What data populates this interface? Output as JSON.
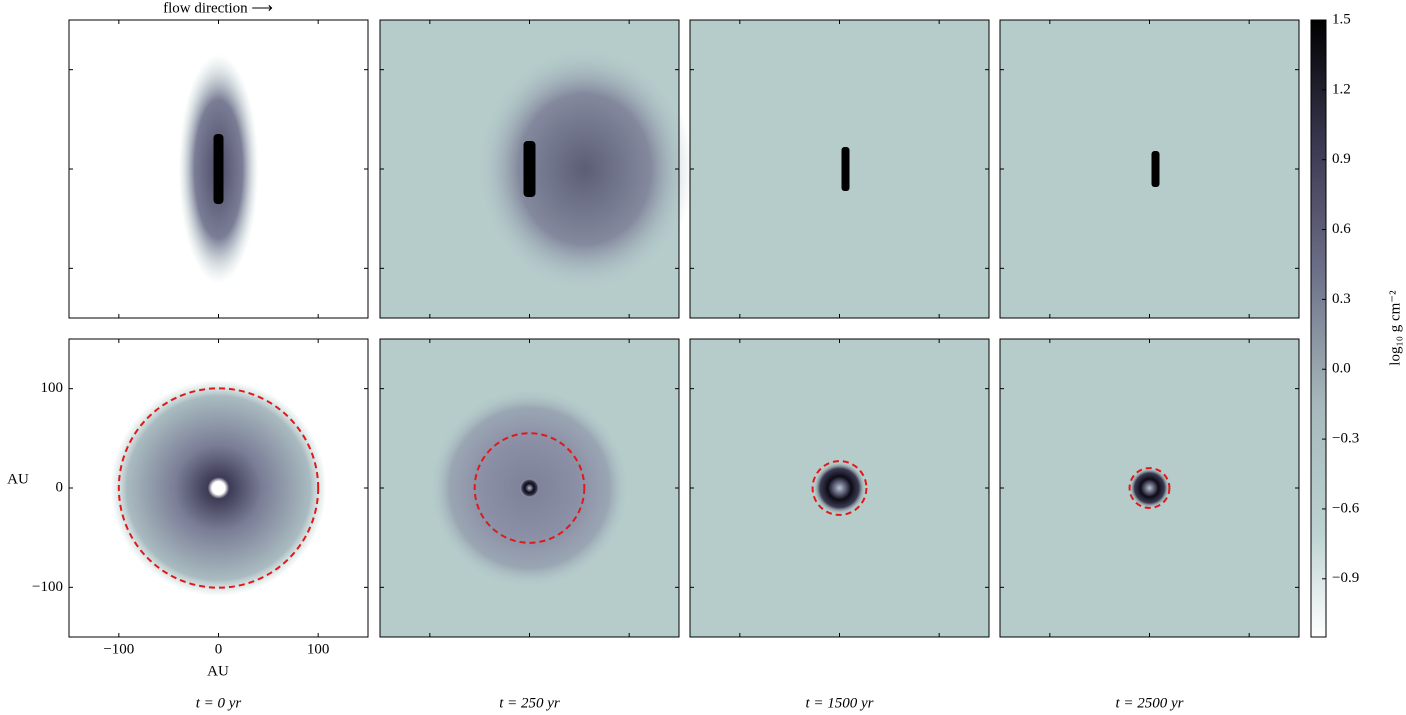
{
  "chart_data": {
    "type": "image-grid",
    "title": "flow direction ⟶",
    "xlabel": "AU",
    "ylabel": "AU",
    "xlim": [
      -150,
      150
    ],
    "ylim": [
      -150,
      150
    ],
    "xticks": [
      {
        "value": -100,
        "label": "−100"
      },
      0,
      100
    ],
    "yticks": [
      {
        "value": -100,
        "label": "−100"
      },
      0,
      100
    ],
    "panels": [
      {
        "time": "t = 0 yr",
        "radius": 100
      },
      {
        "time": "t = 250 yr",
        "radius": 55
      },
      {
        "time": "t = 1500 yr",
        "radius": 27
      },
      {
        "time": "t = 2500 yr",
        "radius": 20
      }
    ],
    "colorbar": {
      "label": "log₁₀ g cm⁻²",
      "lim": [
        -1.15,
        1.5
      ],
      "ticks": [
        {
          "value": -0.9,
          "label": "−0.9"
        },
        {
          "value": -0.6,
          "label": "−0.6"
        },
        {
          "value": -0.3,
          "label": "−0.3"
        },
        {
          "value": 0,
          "label": "0.0"
        },
        0.3,
        0.6,
        0.9,
        1.2,
        1.5
      ]
    }
  }
}
